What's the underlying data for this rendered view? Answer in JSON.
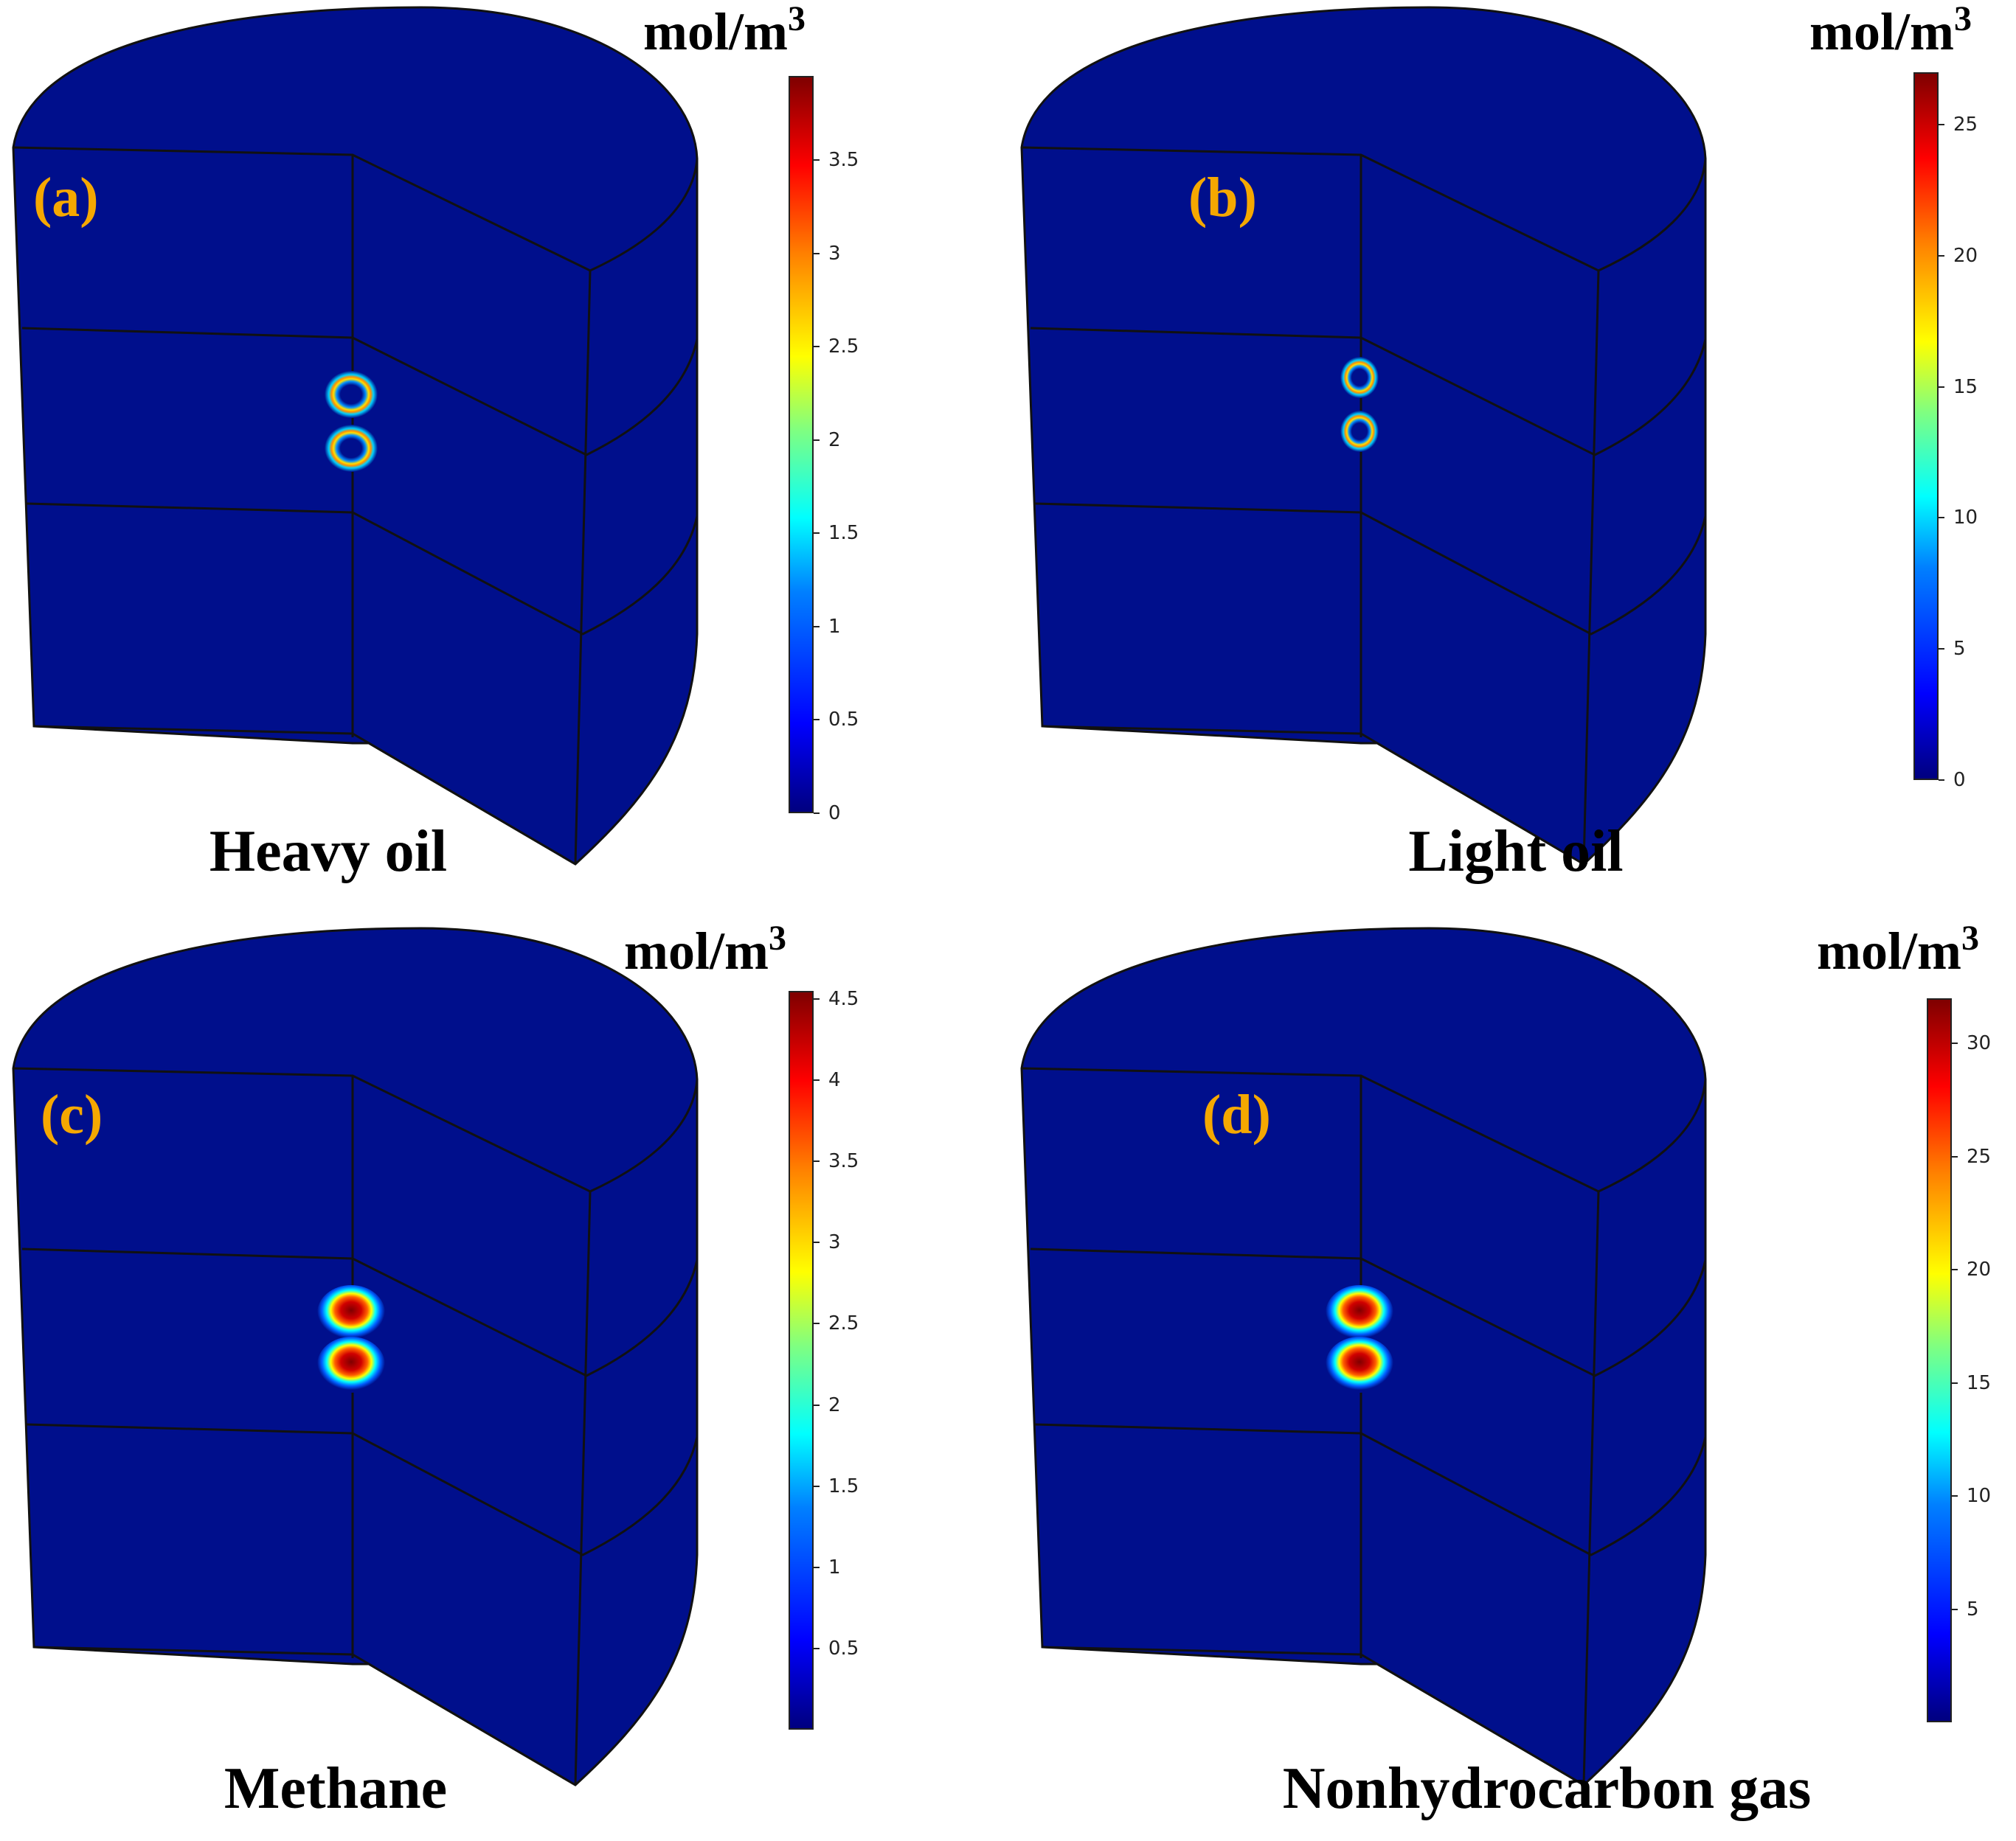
{
  "panels": [
    {
      "letter": "(a)",
      "title": "Heavy oil",
      "unit": "mol/m",
      "unit_sup": "3",
      "ticks": [
        "0",
        "0.5",
        "1",
        "1.5",
        "2",
        "2.5",
        "3",
        "3.5"
      ],
      "tick_values": [
        0,
        0.5,
        1,
        1.5,
        2,
        2.5,
        3,
        3.5
      ],
      "range": [
        0,
        3.95
      ],
      "spot": "ring"
    },
    {
      "letter": "(b)",
      "title": "Light oil",
      "unit": "mol/m",
      "unit_sup": "3",
      "ticks": [
        "0",
        "5",
        "10",
        "15",
        "20",
        "25"
      ],
      "tick_values": [
        0,
        5,
        10,
        15,
        20,
        25
      ],
      "range": [
        0,
        27
      ],
      "spot": "ring-small"
    },
    {
      "letter": "(c)",
      "title": "Methane",
      "unit": "mol/m",
      "unit_sup": "3",
      "ticks": [
        "0.5",
        "1",
        "1.5",
        "2",
        "2.5",
        "3",
        "3.5",
        "4",
        "4.5"
      ],
      "tick_values": [
        0.5,
        1,
        1.5,
        2,
        2.5,
        3,
        3.5,
        4,
        4.5
      ],
      "range": [
        0,
        4.55
      ],
      "spot": "filled"
    },
    {
      "letter": "(d)",
      "title": "Nonhydrocarbon gas",
      "unit": "mol/m",
      "unit_sup": "3",
      "ticks": [
        "5",
        "10",
        "15",
        "20",
        "25",
        "30"
      ],
      "tick_values": [
        5,
        10,
        15,
        20,
        25,
        30
      ],
      "range": [
        0,
        32
      ],
      "spot": "filled"
    }
  ],
  "colors": {
    "field": "#000f8c",
    "edge": "#111111",
    "label_accent": "#f5a800"
  }
}
